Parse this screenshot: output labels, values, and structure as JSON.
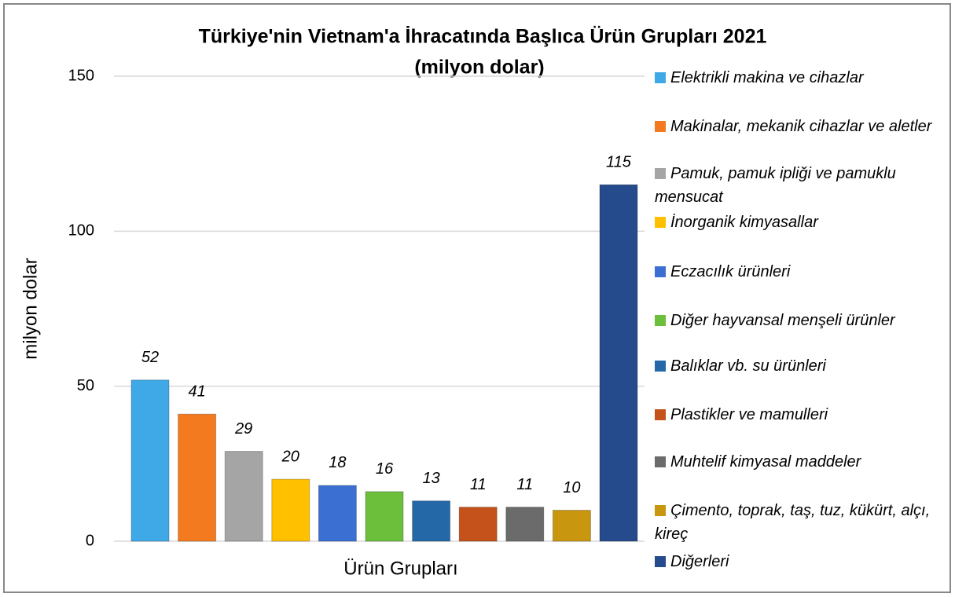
{
  "chart_data": {
    "type": "bar",
    "title": "Türkiye'nin Vietnam'a İhracatında Başlıca Ürün Grupları 2021",
    "subtitle": "(milyon dolar)",
    "x_label": "Ürün Grupları",
    "y_label": "milyon dolar",
    "ylim": [
      0,
      150
    ],
    "yticks": [
      0,
      50,
      100,
      150
    ],
    "grid": true,
    "legend": "right",
    "series": [
      {
        "name": "Elektrikli makina ve cihazlar",
        "color": "#3fa9e8",
        "values": [
          52
        ]
      },
      {
        "name": "Makinalar, mekanik cihazlar ve aletler",
        "color": "#f47a20",
        "values": [
          41
        ]
      },
      {
        "name": "Pamuk, pamuk ipliği ve pamuklu mensucat",
        "color": "#a5a5a5",
        "values": [
          29
        ]
      },
      {
        "name": "İnorganik kimyasallar",
        "color": "#ffc000",
        "values": [
          20
        ]
      },
      {
        "name": "Eczacılık ürünleri",
        "color": "#3b6fd1",
        "values": [
          18
        ]
      },
      {
        "name": "Diğer hayvansal menşeli ürünler",
        "color": "#6cbf3a",
        "values": [
          16
        ]
      },
      {
        "name": "Balıklar vb. su ürünleri",
        "color": "#2468a8",
        "values": [
          13
        ]
      },
      {
        "name": "Plastikler ve mamulleri",
        "color": "#c5521a",
        "values": [
          11
        ]
      },
      {
        "name": "Muhtelif kimyasal maddeler",
        "color": "#6b6b6b",
        "values": [
          11
        ]
      },
      {
        "name": "Çimento, toprak, taş, tuz, kükürt, alçı, kireç",
        "color": "#c9960f",
        "values": [
          10
        ]
      },
      {
        "name": "Diğerleri",
        "color": "#264b8c",
        "values": [
          115
        ]
      }
    ]
  }
}
